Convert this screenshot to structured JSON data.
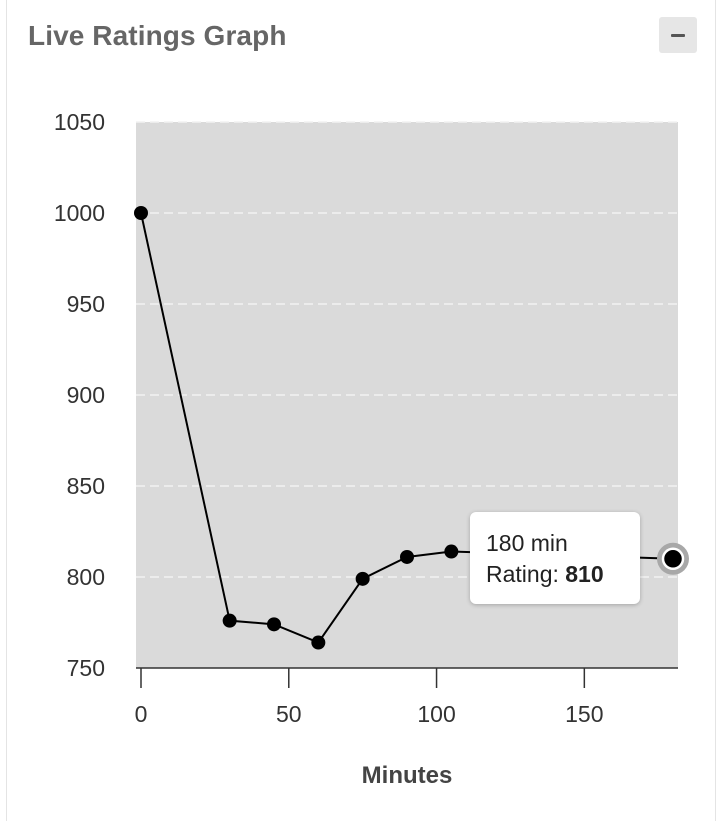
{
  "widget": {
    "title": "Live Ratings Graph",
    "collapse_icon": "minus-icon"
  },
  "tooltip": {
    "x_text": "180 min",
    "rating_label": "Rating:",
    "rating_value": "810"
  },
  "chart_data": {
    "type": "line",
    "xlabel": "Minutes",
    "ylabel": "",
    "x": [
      0,
      30,
      45,
      60,
      75,
      90,
      105,
      180
    ],
    "y": [
      1000,
      776,
      774,
      764,
      799,
      811,
      814,
      810
    ],
    "xlim": [
      0,
      180
    ],
    "ylim": [
      750,
      1050
    ],
    "x_ticks": [
      0,
      50,
      100,
      150
    ],
    "y_ticks": [
      750,
      800,
      850,
      900,
      950,
      1000,
      1050
    ],
    "grid": true,
    "highlighted_point": {
      "x": 180,
      "y": 810
    },
    "colors": {
      "plot_background": "#dadada",
      "line": "#000000",
      "marker": "#000000",
      "gridline": "#f2f2f2"
    }
  }
}
